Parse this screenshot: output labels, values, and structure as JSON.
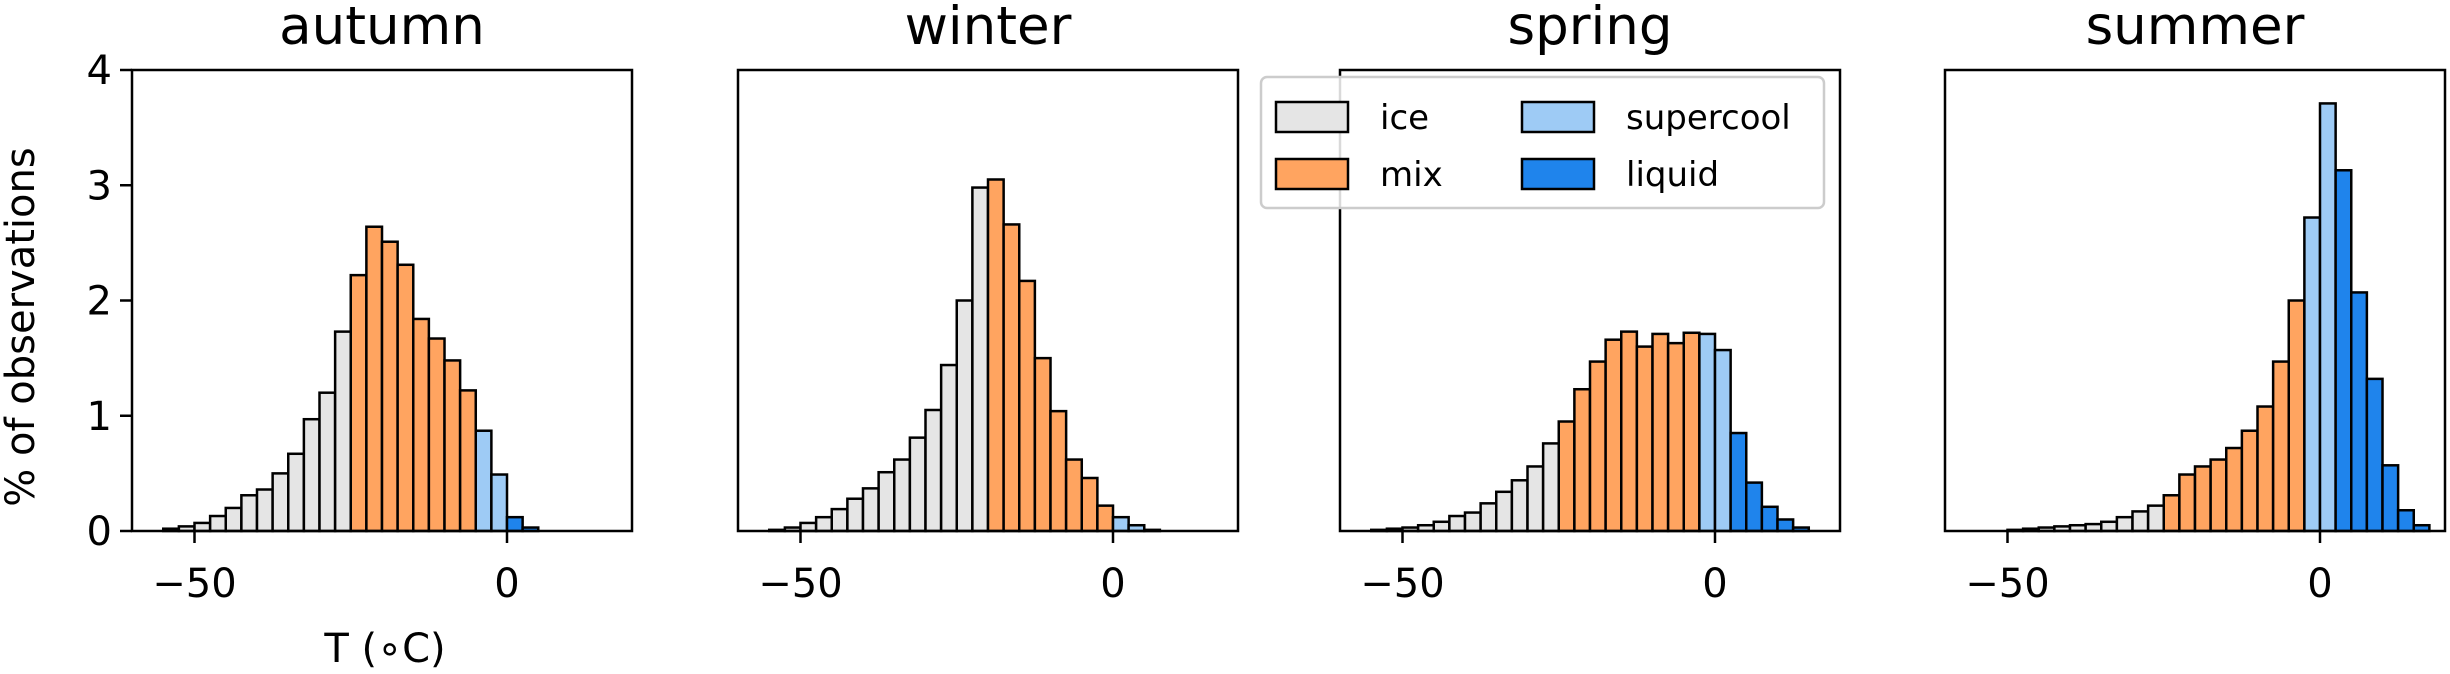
{
  "chart_data": {
    "type": "bar",
    "ylabel": "% of observations",
    "xlabel": "T (∘C)",
    "xlim": [
      -60,
      20
    ],
    "ylim": [
      0,
      4
    ],
    "xticks": [
      "−50",
      "0"
    ],
    "xtick_values": [
      -50,
      0
    ],
    "yticks": [
      "0",
      "1",
      "2",
      "3",
      "4"
    ],
    "ytick_values": [
      0,
      1,
      2,
      3,
      4
    ],
    "bin_width": 2.5,
    "categories": [
      "ice",
      "mix",
      "supercool",
      "liquid"
    ],
    "category_colors": {
      "ice": "#e5e5e5",
      "mix": "#ffa460",
      "supercool": "#9ecbf5",
      "liquid": "#1f84ec"
    },
    "legend": {
      "placement": "top-right of spring panel",
      "entries": [
        {
          "key": "ice",
          "label": "ice"
        },
        {
          "key": "supercool",
          "label": "supercool"
        },
        {
          "key": "mix",
          "label": "mix"
        },
        {
          "key": "liquid",
          "label": "liquid"
        }
      ]
    },
    "panels": [
      {
        "title": "autumn",
        "bins": [
          {
            "x": -55,
            "y": 0.02,
            "category": "ice"
          },
          {
            "x": -52.5,
            "y": 0.04,
            "category": "ice"
          },
          {
            "x": -50,
            "y": 0.07,
            "category": "ice"
          },
          {
            "x": -47.5,
            "y": 0.13,
            "category": "ice"
          },
          {
            "x": -45,
            "y": 0.2,
            "category": "ice"
          },
          {
            "x": -42.5,
            "y": 0.31,
            "category": "ice"
          },
          {
            "x": -40,
            "y": 0.36,
            "category": "ice"
          },
          {
            "x": -37.5,
            "y": 0.5,
            "category": "ice"
          },
          {
            "x": -35,
            "y": 0.67,
            "category": "ice"
          },
          {
            "x": -32.5,
            "y": 0.97,
            "category": "ice"
          },
          {
            "x": -30,
            "y": 1.2,
            "category": "ice"
          },
          {
            "x": -27.5,
            "y": 1.73,
            "category": "ice"
          },
          {
            "x": -25,
            "y": 2.22,
            "category": "mix"
          },
          {
            "x": -22.5,
            "y": 2.64,
            "category": "mix"
          },
          {
            "x": -20,
            "y": 2.51,
            "category": "mix"
          },
          {
            "x": -17.5,
            "y": 2.31,
            "category": "mix"
          },
          {
            "x": -15,
            "y": 1.84,
            "category": "mix"
          },
          {
            "x": -12.5,
            "y": 1.67,
            "category": "mix"
          },
          {
            "x": -10,
            "y": 1.48,
            "category": "mix"
          },
          {
            "x": -7.5,
            "y": 1.22,
            "category": "mix"
          },
          {
            "x": -5,
            "y": 0.87,
            "category": "supercool"
          },
          {
            "x": -2.5,
            "y": 0.49,
            "category": "supercool"
          },
          {
            "x": 0,
            "y": 0.12,
            "category": "liquid"
          },
          {
            "x": 2.5,
            "y": 0.03,
            "category": "liquid"
          }
        ]
      },
      {
        "title": "winter",
        "bins": [
          {
            "x": -55,
            "y": 0.01,
            "category": "ice"
          },
          {
            "x": -52.5,
            "y": 0.03,
            "category": "ice"
          },
          {
            "x": -50,
            "y": 0.07,
            "category": "ice"
          },
          {
            "x": -47.5,
            "y": 0.12,
            "category": "ice"
          },
          {
            "x": -45,
            "y": 0.19,
            "category": "ice"
          },
          {
            "x": -42.5,
            "y": 0.28,
            "category": "ice"
          },
          {
            "x": -40,
            "y": 0.37,
            "category": "ice"
          },
          {
            "x": -37.5,
            "y": 0.51,
            "category": "ice"
          },
          {
            "x": -35,
            "y": 0.62,
            "category": "ice"
          },
          {
            "x": -32.5,
            "y": 0.81,
            "category": "ice"
          },
          {
            "x": -30,
            "y": 1.05,
            "category": "ice"
          },
          {
            "x": -27.5,
            "y": 1.44,
            "category": "ice"
          },
          {
            "x": -25,
            "y": 2.0,
            "category": "ice"
          },
          {
            "x": -22.5,
            "y": 2.98,
            "category": "ice"
          },
          {
            "x": -20,
            "y": 3.05,
            "category": "mix"
          },
          {
            "x": -17.5,
            "y": 2.66,
            "category": "mix"
          },
          {
            "x": -15,
            "y": 2.17,
            "category": "mix"
          },
          {
            "x": -12.5,
            "y": 1.5,
            "category": "mix"
          },
          {
            "x": -10,
            "y": 1.04,
            "category": "mix"
          },
          {
            "x": -7.5,
            "y": 0.62,
            "category": "mix"
          },
          {
            "x": -5,
            "y": 0.46,
            "category": "mix"
          },
          {
            "x": -2.5,
            "y": 0.22,
            "category": "mix"
          },
          {
            "x": 0,
            "y": 0.12,
            "category": "supercool"
          },
          {
            "x": 2.5,
            "y": 0.05,
            "category": "supercool"
          },
          {
            "x": 5,
            "y": 0.01,
            "category": "supercool"
          }
        ]
      },
      {
        "title": "spring",
        "bins": [
          {
            "x": -55,
            "y": 0.01,
            "category": "ice"
          },
          {
            "x": -52.5,
            "y": 0.02,
            "category": "ice"
          },
          {
            "x": -50,
            "y": 0.03,
            "category": "ice"
          },
          {
            "x": -47.5,
            "y": 0.05,
            "category": "ice"
          },
          {
            "x": -45,
            "y": 0.08,
            "category": "ice"
          },
          {
            "x": -42.5,
            "y": 0.13,
            "category": "ice"
          },
          {
            "x": -40,
            "y": 0.16,
            "category": "ice"
          },
          {
            "x": -37.5,
            "y": 0.24,
            "category": "ice"
          },
          {
            "x": -35,
            "y": 0.34,
            "category": "ice"
          },
          {
            "x": -32.5,
            "y": 0.44,
            "category": "ice"
          },
          {
            "x": -30,
            "y": 0.56,
            "category": "ice"
          },
          {
            "x": -27.5,
            "y": 0.76,
            "category": "ice"
          },
          {
            "x": -25,
            "y": 0.95,
            "category": "mix"
          },
          {
            "x": -22.5,
            "y": 1.23,
            "category": "mix"
          },
          {
            "x": -20,
            "y": 1.47,
            "category": "mix"
          },
          {
            "x": -17.5,
            "y": 1.66,
            "category": "mix"
          },
          {
            "x": -15,
            "y": 1.73,
            "category": "mix"
          },
          {
            "x": -12.5,
            "y": 1.6,
            "category": "mix"
          },
          {
            "x": -10,
            "y": 1.71,
            "category": "mix"
          },
          {
            "x": -7.5,
            "y": 1.63,
            "category": "mix"
          },
          {
            "x": -5,
            "y": 1.72,
            "category": "mix"
          },
          {
            "x": -2.5,
            "y": 1.71,
            "category": "supercool"
          },
          {
            "x": 0,
            "y": 1.57,
            "category": "supercool"
          },
          {
            "x": 2.5,
            "y": 0.85,
            "category": "liquid"
          },
          {
            "x": 5,
            "y": 0.42,
            "category": "liquid"
          },
          {
            "x": 7.5,
            "y": 0.21,
            "category": "liquid"
          },
          {
            "x": 10,
            "y": 0.1,
            "category": "liquid"
          },
          {
            "x": 12.5,
            "y": 0.03,
            "category": "liquid"
          }
        ]
      },
      {
        "title": "summer",
        "bins": [
          {
            "x": -50,
            "y": 0.01,
            "category": "ice"
          },
          {
            "x": -47.5,
            "y": 0.02,
            "category": "ice"
          },
          {
            "x": -45,
            "y": 0.03,
            "category": "ice"
          },
          {
            "x": -42.5,
            "y": 0.04,
            "category": "ice"
          },
          {
            "x": -40,
            "y": 0.05,
            "category": "ice"
          },
          {
            "x": -37.5,
            "y": 0.06,
            "category": "ice"
          },
          {
            "x": -35,
            "y": 0.08,
            "category": "ice"
          },
          {
            "x": -32.5,
            "y": 0.12,
            "category": "ice"
          },
          {
            "x": -30,
            "y": 0.17,
            "category": "ice"
          },
          {
            "x": -27.5,
            "y": 0.22,
            "category": "ice"
          },
          {
            "x": -25,
            "y": 0.31,
            "category": "mix"
          },
          {
            "x": -22.5,
            "y": 0.49,
            "category": "mix"
          },
          {
            "x": -20,
            "y": 0.56,
            "category": "mix"
          },
          {
            "x": -17.5,
            "y": 0.62,
            "category": "mix"
          },
          {
            "x": -15,
            "y": 0.72,
            "category": "mix"
          },
          {
            "x": -12.5,
            "y": 0.87,
            "category": "mix"
          },
          {
            "x": -10,
            "y": 1.08,
            "category": "mix"
          },
          {
            "x": -7.5,
            "y": 1.47,
            "category": "mix"
          },
          {
            "x": -5,
            "y": 2.0,
            "category": "mix"
          },
          {
            "x": -2.5,
            "y": 2.72,
            "category": "supercool"
          },
          {
            "x": 0,
            "y": 3.71,
            "category": "supercool"
          },
          {
            "x": 2.5,
            "y": 3.13,
            "category": "liquid"
          },
          {
            "x": 5,
            "y": 2.07,
            "category": "liquid"
          },
          {
            "x": 7.5,
            "y": 1.32,
            "category": "liquid"
          },
          {
            "x": 10,
            "y": 0.57,
            "category": "liquid"
          },
          {
            "x": 12.5,
            "y": 0.18,
            "category": "liquid"
          },
          {
            "x": 15,
            "y": 0.05,
            "category": "liquid"
          }
        ]
      }
    ]
  }
}
